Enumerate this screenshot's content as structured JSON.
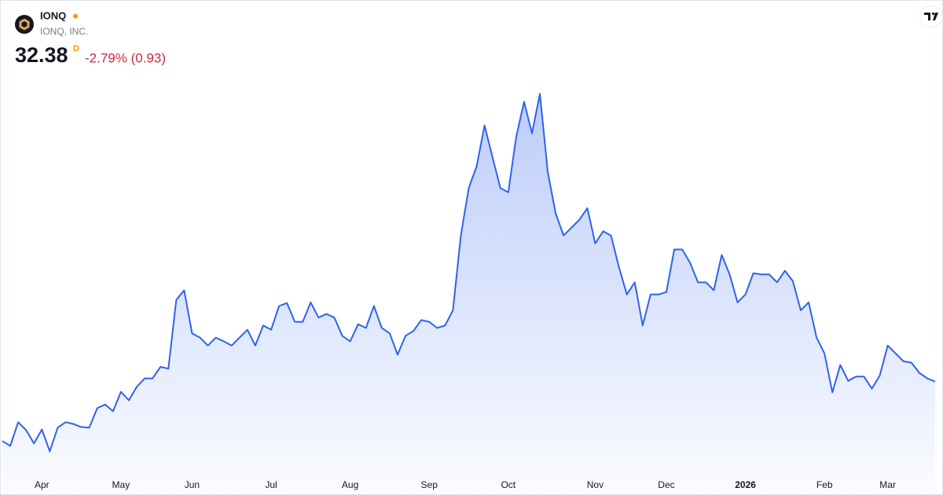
{
  "chart_data": {
    "type": "area",
    "title": "IONQ",
    "subtitle": "IONQ, INC.",
    "price": "32.38",
    "price_badge": "D",
    "change": "-2.79% (0.93)",
    "color": "#2f62f0",
    "categories": [
      null,
      null,
      null,
      null,
      null,
      "Apr",
      null,
      null,
      null,
      null,
      null,
      null,
      null,
      null,
      null,
      "May",
      null,
      null,
      null,
      null,
      null,
      null,
      null,
      null,
      "Jun",
      null,
      null,
      null,
      null,
      null,
      null,
      null,
      null,
      null,
      "Jul",
      null,
      null,
      null,
      null,
      null,
      null,
      null,
      null,
      null,
      "Aug",
      null,
      null,
      null,
      null,
      null,
      null,
      null,
      null,
      null,
      "Sep",
      null,
      null,
      null,
      null,
      null,
      null,
      null,
      null,
      null,
      "Oct",
      null,
      null,
      null,
      null,
      null,
      null,
      null,
      null,
      null,
      null,
      "Nov",
      null,
      null,
      null,
      null,
      null,
      null,
      null,
      null,
      "Dec",
      null,
      null,
      null,
      null,
      null,
      null,
      null,
      null,
      null,
      "2026",
      null,
      null,
      null,
      null,
      null,
      null,
      null,
      null,
      null,
      "Feb",
      null,
      null,
      null,
      null,
      null,
      null,
      null,
      "Mar",
      null,
      null,
      null,
      null,
      null,
      null
    ],
    "values": [
      22.6,
      21.8,
      25.7,
      24.4,
      22.2,
      24.5,
      20.9,
      24.8,
      25.7,
      25.4,
      24.9,
      24.8,
      28.0,
      28.6,
      27.5,
      30.7,
      29.3,
      31.5,
      32.9,
      32.9,
      34.8,
      34.5,
      45.8,
      47.4,
      40.3,
      39.6,
      38.3,
      39.6,
      39.0,
      38.3,
      39.6,
      40.9,
      38.3,
      41.6,
      40.9,
      44.8,
      45.3,
      42.2,
      42.2,
      45.4,
      42.9,
      43.5,
      42.9,
      39.9,
      39.0,
      41.8,
      41.2,
      44.8,
      41.2,
      40.3,
      36.8,
      39.9,
      40.7,
      42.5,
      42.2,
      41.2,
      41.6,
      44.1,
      56.4,
      64.2,
      67.8,
      74.5,
      69.3,
      64.2,
      63.5,
      72.6,
      78.4,
      73.2,
      79.7,
      66.8,
      60.0,
      56.4,
      57.7,
      59.0,
      60.9,
      55.1,
      57.1,
      56.4,
      51.2,
      46.7,
      48.7,
      41.6,
      46.7,
      46.7,
      47.1,
      54.1,
      54.1,
      51.9,
      48.7,
      48.7,
      47.4,
      53.2,
      50.0,
      45.4,
      46.7,
      50.2,
      50.0,
      50.0,
      48.7,
      50.6,
      48.9,
      44.1,
      45.4,
      39.6,
      37.0,
      30.6,
      35.1,
      32.5,
      33.2,
      33.2,
      31.2,
      33.4,
      38.3,
      37.0,
      35.7,
      35.5,
      33.8,
      32.9,
      32.38
    ],
    "ylim": [
      17.6,
      83.5
    ]
  }
}
